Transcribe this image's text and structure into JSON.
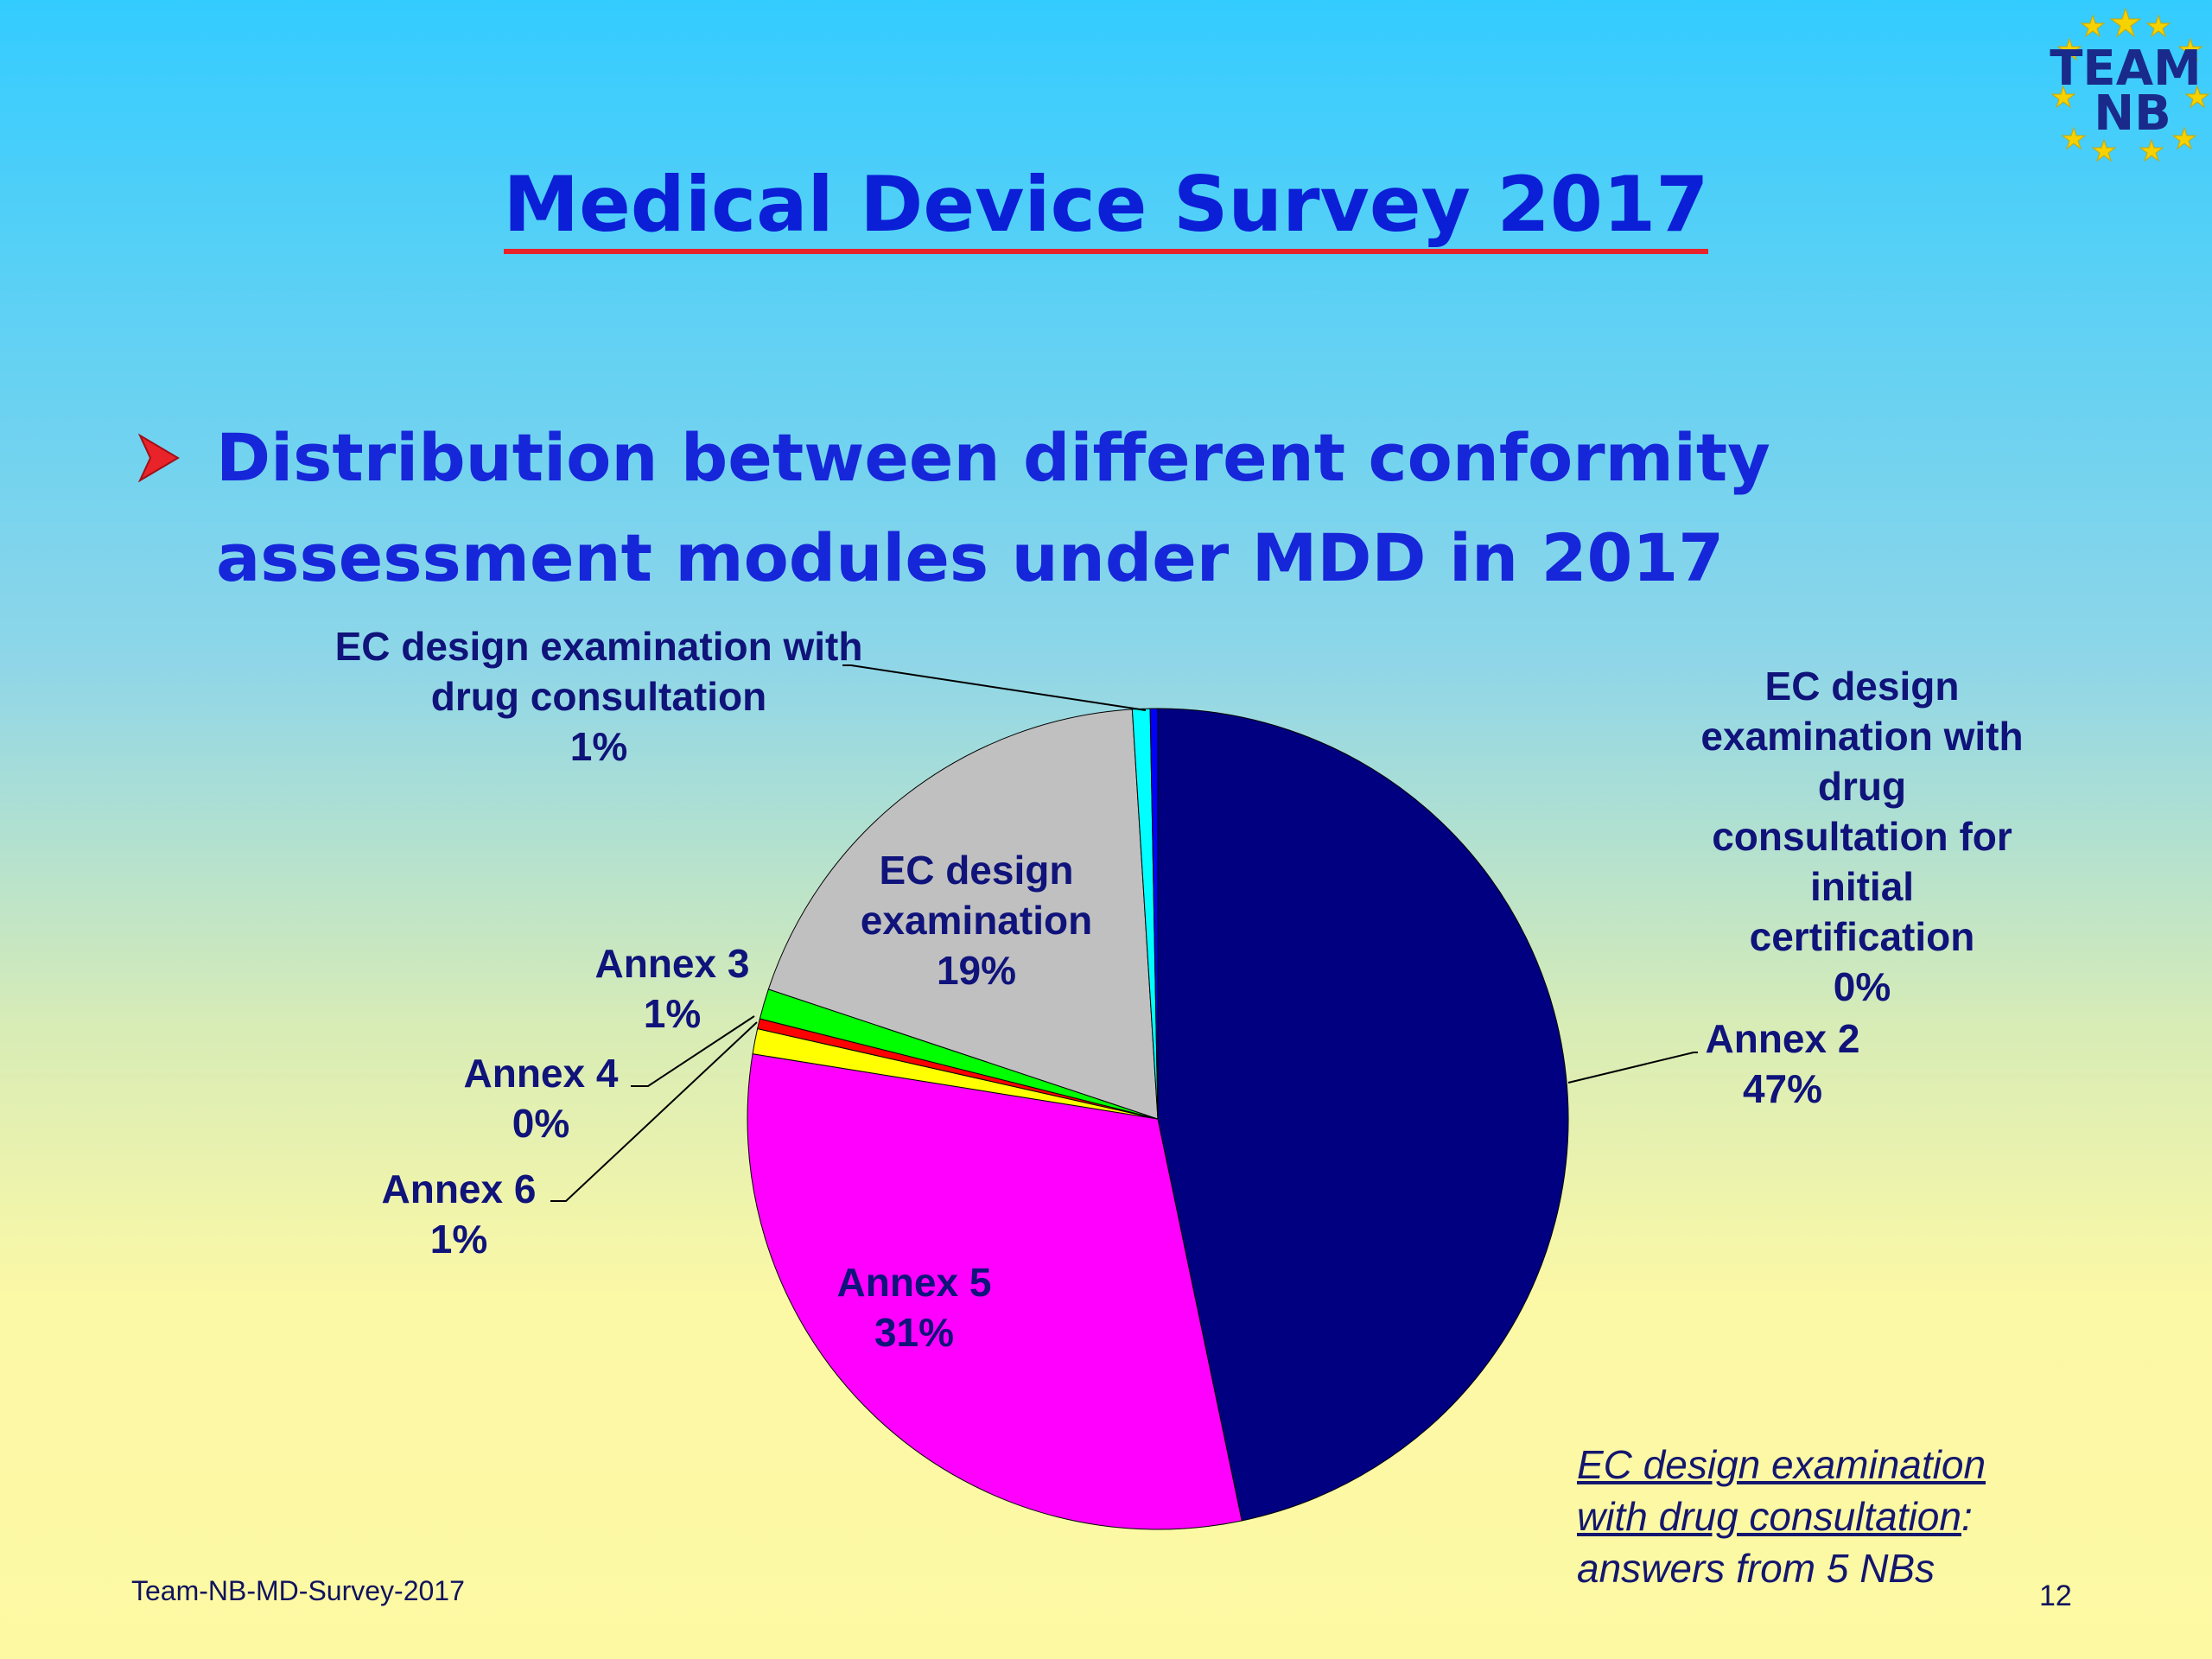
{
  "slide": {
    "title": "Medical Device Survey 2017",
    "subtitle_line1": "Distribution between different conformity",
    "subtitle_line2": "assessment modules under MDD  in 2017",
    "note_line1": "EC design examination",
    "note_line2": "with drug consultation",
    "note_line2_suffix": ":",
    "note_line3": "answers from 5 NBs",
    "footer": "Team-NB-MD-Survey-2017",
    "page_number": "12",
    "logo_text_1": "TEAM",
    "logo_text_2": "NB"
  },
  "colors": {
    "title": "#0b1fd6",
    "title_underline": "#e8232a",
    "bullet": "#e8232a",
    "label_text": "#0f137a"
  },
  "chart_data": {
    "type": "pie",
    "title": "",
    "slices": [
      {
        "name": "Annex 2",
        "value": 47,
        "label": "47%",
        "color": "#000080"
      },
      {
        "name": "Annex 5",
        "value": 31,
        "label": "31%",
        "color": "#ff00ff"
      },
      {
        "name": "Annex 6",
        "value": 1,
        "label": "1%",
        "color": "#ffff00"
      },
      {
        "name": "Annex 4",
        "value": 0.4,
        "label": "0%",
        "color": "#ff0000"
      },
      {
        "name": "Annex 3",
        "value": 1.2,
        "label": "1%",
        "color": "#00ff00"
      },
      {
        "name": "EC design examination",
        "value": 19,
        "label": "19%",
        "color": "#c0c0c0"
      },
      {
        "name": "EC design examination with drug consultation",
        "value": 0.7,
        "label": "1%",
        "color": "#00ffff"
      },
      {
        "name": "EC design examination with drug consultation for initial certification",
        "value": 0.3,
        "label": "0%",
        "color": "#0000ff"
      }
    ],
    "start": "12 o'clock, clockwise",
    "legend": "none (data labels)"
  },
  "labels": {
    "annex2": [
      "Annex 2",
      "47%"
    ],
    "annex5": [
      "Annex 5",
      "31%"
    ],
    "annex6": [
      "Annex 6",
      "1%"
    ],
    "annex4": [
      "Annex 4",
      "0%"
    ],
    "annex3": [
      "Annex 3",
      "1%"
    ],
    "ec_design": [
      "EC design",
      "examination",
      "19%"
    ],
    "ec_drug": [
      "EC design examination with",
      "drug consultation",
      "1%"
    ],
    "ec_drug_initial": [
      "EC design",
      "examination with",
      "drug",
      "consultation for",
      "initial",
      "certification",
      "0%"
    ]
  }
}
